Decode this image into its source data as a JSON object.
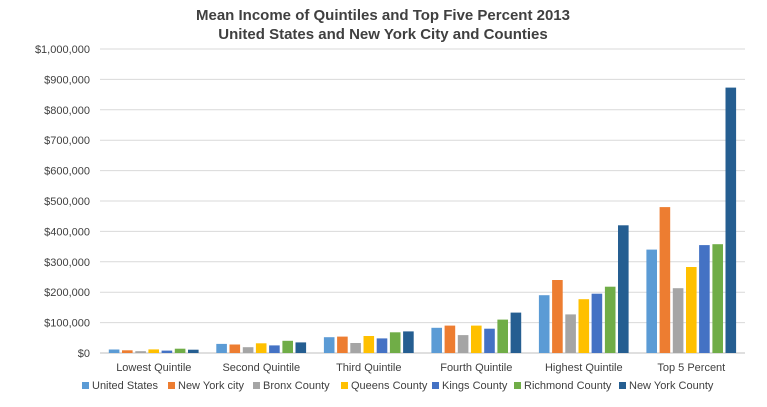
{
  "chart_data": {
    "type": "bar",
    "title": "Mean Income of Quintiles and Top Five Percent 2013",
    "subtitle": "United States and New York City and Counties",
    "xlabel": "",
    "ylabel": "",
    "ylim": [
      0,
      1000000
    ],
    "ytick_labels": [
      "$0",
      "$100,000",
      "$200,000",
      "$300,000",
      "$400,000",
      "$500,000",
      "$600,000",
      "$700,000",
      "$800,000",
      "$900,000",
      "$1,000,000"
    ],
    "ytick_values": [
      0,
      100000,
      200000,
      300000,
      400000,
      500000,
      600000,
      700000,
      800000,
      900000,
      1000000
    ],
    "grid": true,
    "legend_position": "bottom",
    "categories": [
      "Lowest Quintile",
      "Second Quintile",
      "Third Quintile",
      "Fourth Quintile",
      "Highest Quintile",
      "Top 5 Percent"
    ],
    "series": [
      {
        "name": "United States",
        "color": "#5b9bd5",
        "values": [
          11500,
          30000,
          52000,
          83000,
          190000,
          340000
        ]
      },
      {
        "name": "New York city",
        "color": "#ed7d31",
        "values": [
          9000,
          28000,
          54000,
          90000,
          240000,
          480000
        ]
      },
      {
        "name": "Bronx County",
        "color": "#a5a5a5",
        "values": [
          6000,
          19000,
          33000,
          59000,
          127000,
          213000
        ]
      },
      {
        "name": "Queens County",
        "color": "#ffc000",
        "values": [
          12000,
          32000,
          56000,
          90000,
          177000,
          283000
        ]
      },
      {
        "name": "Kings County",
        "color": "#4472c4",
        "values": [
          8000,
          25000,
          48000,
          80000,
          195000,
          355000
        ]
      },
      {
        "name": "Richmond County",
        "color": "#70ad47",
        "values": [
          14000,
          40000,
          68000,
          110000,
          218000,
          358000
        ]
      },
      {
        "name": "New York County",
        "color": "#255e91",
        "values": [
          11000,
          35000,
          71000,
          133000,
          420000,
          873000
        ]
      }
    ]
  }
}
